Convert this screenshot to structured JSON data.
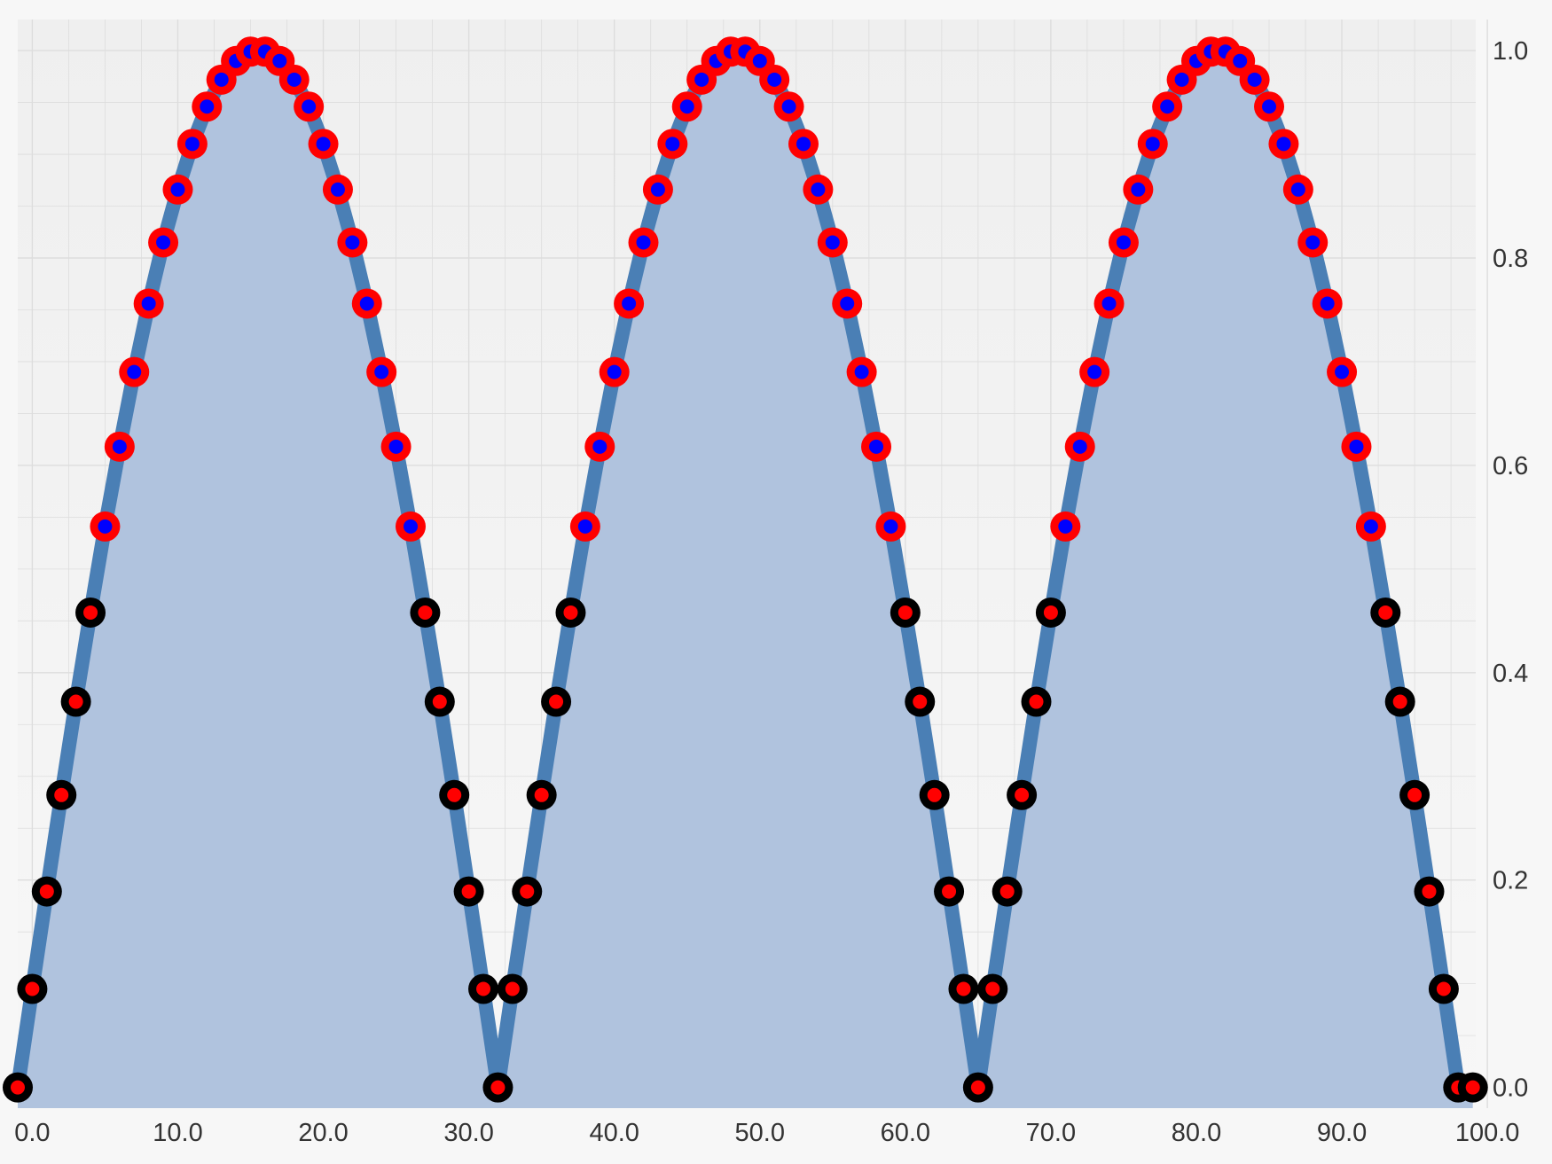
{
  "chart_data": {
    "type": "area",
    "title": "",
    "xlabel": "",
    "ylabel": "",
    "x_ticks": [
      "0.0",
      "10.0",
      "20.0",
      "30.0",
      "40.0",
      "50.0",
      "60.0",
      "70.0",
      "80.0",
      "90.0",
      "100.0"
    ],
    "y_ticks": [
      "0.0",
      "0.2",
      "0.4",
      "0.6",
      "0.8",
      "1.0"
    ],
    "xlim": [
      -1.0,
      99.2
    ],
    "ylim": [
      -0.02,
      1.03
    ],
    "y_axis_side": "right",
    "grid": true,
    "x": [
      -1,
      0,
      1,
      2,
      3,
      4,
      5,
      6,
      7,
      8,
      9,
      10,
      11,
      12,
      13,
      14,
      15,
      16,
      17,
      18,
      19,
      20,
      21,
      22,
      23,
      24,
      25,
      26,
      27,
      28,
      29,
      30,
      31,
      32,
      33,
      34,
      35,
      36,
      37,
      38,
      39,
      40,
      41,
      42,
      43,
      44,
      45,
      46,
      47,
      48,
      49,
      50,
      51,
      52,
      53,
      54,
      55,
      56,
      57,
      58,
      59,
      60,
      61,
      62,
      63,
      64,
      65,
      66,
      67,
      68,
      69,
      70,
      71,
      72,
      73,
      74,
      75,
      76,
      77,
      78,
      79,
      80,
      81,
      82,
      83,
      84,
      85,
      86,
      87,
      88,
      89,
      90,
      91,
      92,
      93,
      94,
      95,
      96,
      97,
      98,
      99
    ],
    "series": [
      {
        "values": [
          0.0,
          0.095,
          0.189,
          0.282,
          0.372,
          0.458,
          0.541,
          0.618,
          0.69,
          0.756,
          0.815,
          0.866,
          0.91,
          0.946,
          0.972,
          0.99,
          0.999,
          0.999,
          0.99,
          0.972,
          0.946,
          0.91,
          0.866,
          0.815,
          0.756,
          0.69,
          0.618,
          0.541,
          0.458,
          0.372,
          0.282,
          0.189,
          0.095,
          0.0,
          0.095,
          0.189,
          0.282,
          0.372,
          0.458,
          0.541,
          0.618,
          0.69,
          0.756,
          0.815,
          0.866,
          0.91,
          0.946,
          0.972,
          0.99,
          0.999,
          0.999,
          0.99,
          0.972,
          0.946,
          0.91,
          0.866,
          0.815,
          0.756,
          0.69,
          0.618,
          0.541,
          0.458,
          0.372,
          0.282,
          0.189,
          0.095,
          0.0,
          0.095,
          0.189,
          0.282,
          0.372,
          0.458,
          0.541,
          0.618,
          0.69,
          0.756,
          0.815,
          0.866,
          0.91,
          0.946,
          0.972,
          0.99,
          0.999,
          0.999,
          0.99,
          0.972,
          0.946,
          0.91,
          0.866,
          0.815,
          0.756,
          0.69,
          0.618,
          0.541,
          0.458,
          0.372,
          0.282,
          0.189,
          0.095,
          0.0,
          0.0
        ]
      }
    ],
    "marker_threshold": 0.5,
    "colors": {
      "line": "#4a7fb5",
      "fill": "#b0c3de",
      "plot_background": "#f7f7f7",
      "plot_background_top": "#efefef",
      "grid": "#dddddd",
      "marker_high_ring": "#ff0000",
      "marker_high_center": "#0000ff",
      "marker_low_ring": "#000000",
      "marker_low_center": "#ff0000"
    }
  }
}
